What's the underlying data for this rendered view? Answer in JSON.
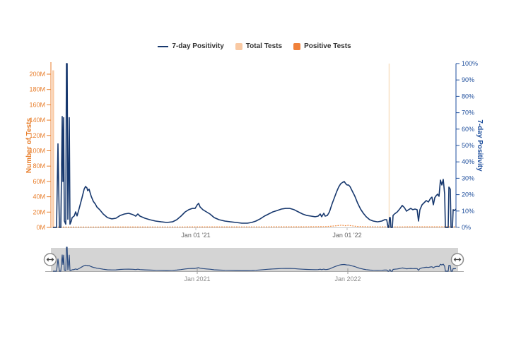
{
  "legend": {
    "items": [
      {
        "label": "7-day Positivity",
        "type": "line",
        "color": "#17386e"
      },
      {
        "label": "Total Tests",
        "type": "square",
        "color": "#f9c9a3"
      },
      {
        "label": "Positive Tests",
        "type": "square",
        "color": "#f0813a"
      }
    ]
  },
  "main_chart": {
    "left_axis": {
      "title": "Number of Tests",
      "color": "#e87e2b",
      "ticks": [
        "0M",
        "20M",
        "40M",
        "60M",
        "80M",
        "100M",
        "120M",
        "140M",
        "160M",
        "180M",
        "200M"
      ]
    },
    "right_axis": {
      "title": "7-day Positivity",
      "color": "#1e4e9c",
      "ticks": [
        "0%",
        "10%",
        "20%",
        "30%",
        "40%",
        "50%",
        "60%",
        "70%",
        "80%",
        "90%",
        "100%"
      ]
    },
    "x_axis": {
      "ticks": [
        {
          "label": "Jan 01 '21",
          "x": 277
        },
        {
          "label": "Jan 01 '22",
          "x": 491
        }
      ]
    }
  },
  "navigator": {
    "x_axis": {
      "ticks": [
        {
          "label": "Jan 2021",
          "x": 279
        },
        {
          "label": "Jan 2022",
          "x": 492
        }
      ]
    }
  },
  "chart_data": {
    "type": "line",
    "title": "",
    "xlabel": "",
    "left_ylabel": "Number of Tests",
    "left_ylim_millions": [
      0,
      200
    ],
    "right_ylabel": "7-day Positivity",
    "right_ylim_percent": [
      0,
      100
    ],
    "x_domain_note": "approx Feb 2020 through Sep 2022; x given in screenshot pixels, Jan-01-2021=277px, Jan-01-2022=491px",
    "grid": false,
    "legend_position": "top-center",
    "marker_line_x": 550,
    "total_tests_bar": {
      "x": 74,
      "width": 2.5,
      "approx_value_millions": 205
    },
    "series": [
      {
        "name": "7-day Positivity",
        "units": "percent",
        "points": [
          [
            75,
            0
          ],
          [
            80,
            0
          ],
          [
            82,
            51
          ],
          [
            84,
            0
          ],
          [
            86,
            0
          ],
          [
            88,
            67.7
          ],
          [
            89,
            28
          ],
          [
            90,
            67
          ],
          [
            91,
            4
          ],
          [
            93,
            2
          ],
          [
            94,
            100
          ],
          [
            95,
            100
          ],
          [
            96,
            5
          ],
          [
            97,
            30
          ],
          [
            98,
            67
          ],
          [
            99,
            2
          ],
          [
            101,
            4
          ],
          [
            102,
            6
          ],
          [
            105,
            7
          ],
          [
            107,
            9.5
          ],
          [
            109,
            7
          ],
          [
            112,
            11.6
          ],
          [
            116,
            18.1
          ],
          [
            119,
            23.3
          ],
          [
            121,
            25
          ],
          [
            123,
            24.1
          ],
          [
            124,
            22.4
          ],
          [
            126,
            23.3
          ],
          [
            129,
            19
          ],
          [
            132,
            15.9
          ],
          [
            135,
            14.2
          ],
          [
            137,
            12.5
          ],
          [
            141,
            10.8
          ],
          [
            146,
            8.2
          ],
          [
            152,
            6
          ],
          [
            158,
            5.2
          ],
          [
            164,
            5.6
          ],
          [
            170,
            7.3
          ],
          [
            176,
            8.2
          ],
          [
            182,
            8.6
          ],
          [
            188,
            7.8
          ],
          [
            192,
            6.9
          ],
          [
            195,
            8.2
          ],
          [
            198,
            6.9
          ],
          [
            205,
            5.6
          ],
          [
            212,
            4.7
          ],
          [
            220,
            3.9
          ],
          [
            228,
            3.4
          ],
          [
            236,
            3
          ],
          [
            244,
            3.4
          ],
          [
            250,
            4.7
          ],
          [
            256,
            6.9
          ],
          [
            262,
            9.5
          ],
          [
            267,
            10.8
          ],
          [
            272,
            11.6
          ],
          [
            276,
            11.6
          ],
          [
            279,
            13.8
          ],
          [
            281,
            14.7
          ],
          [
            283,
            12.5
          ],
          [
            287,
            10.8
          ],
          [
            292,
            9.5
          ],
          [
            297,
            8.2
          ],
          [
            303,
            6
          ],
          [
            310,
            4.7
          ],
          [
            318,
            3.9
          ],
          [
            326,
            3.4
          ],
          [
            334,
            3
          ],
          [
            342,
            2.6
          ],
          [
            350,
            2.6
          ],
          [
            356,
            3
          ],
          [
            362,
            3.9
          ],
          [
            368,
            5.2
          ],
          [
            374,
            6.9
          ],
          [
            380,
            8.2
          ],
          [
            386,
            9.5
          ],
          [
            392,
            10.3
          ],
          [
            398,
            11.2
          ],
          [
            404,
            11.6
          ],
          [
            410,
            11.6
          ],
          [
            416,
            10.8
          ],
          [
            422,
            9.5
          ],
          [
            428,
            8.2
          ],
          [
            434,
            7.3
          ],
          [
            440,
            6.9
          ],
          [
            446,
            6.5
          ],
          [
            450,
            6.9
          ],
          [
            453,
            8.2
          ],
          [
            455,
            6.5
          ],
          [
            458,
            8.6
          ],
          [
            460,
            6.9
          ],
          [
            463,
            7.3
          ],
          [
            466,
            9.5
          ],
          [
            468,
            12.1
          ],
          [
            470,
            14.7
          ],
          [
            473,
            18.1
          ],
          [
            476,
            21.6
          ],
          [
            479,
            24.6
          ],
          [
            482,
            26.7
          ],
          [
            485,
            27.6
          ],
          [
            487,
            28
          ],
          [
            489,
            26.7
          ],
          [
            491,
            25.9
          ],
          [
            493,
            25.9
          ],
          [
            495,
            25
          ],
          [
            498,
            22.4
          ],
          [
            502,
            19
          ],
          [
            506,
            14.7
          ],
          [
            510,
            11.2
          ],
          [
            514,
            8.6
          ],
          [
            518,
            6.5
          ],
          [
            523,
            4.7
          ],
          [
            528,
            3.9
          ],
          [
            534,
            3.4
          ],
          [
            540,
            3.9
          ],
          [
            544,
            4.7
          ],
          [
            547,
            4.7
          ],
          [
            549,
            0
          ],
          [
            550,
            0
          ],
          [
            551,
            6
          ],
          [
            552,
            6
          ],
          [
            553,
            0
          ],
          [
            555,
            0
          ],
          [
            556,
            7.3
          ],
          [
            558,
            8.2
          ],
          [
            562,
            9.5
          ],
          [
            566,
            11.6
          ],
          [
            569,
            13.4
          ],
          [
            572,
            12.1
          ],
          [
            575,
            9.9
          ],
          [
            578,
            10.8
          ],
          [
            581,
            11.6
          ],
          [
            584,
            10.8
          ],
          [
            587,
            11.2
          ],
          [
            590,
            10.8
          ],
          [
            592,
            3.9
          ],
          [
            594,
            10.8
          ],
          [
            597,
            13.8
          ],
          [
            600,
            15.1
          ],
          [
            603,
            16.4
          ],
          [
            606,
            15.5
          ],
          [
            609,
            17.7
          ],
          [
            611,
            18.5
          ],
          [
            613,
            13.8
          ],
          [
            615,
            18.1
          ],
          [
            617,
            19.4
          ],
          [
            619,
            20.3
          ],
          [
            621,
            19
          ],
          [
            623,
            28.9
          ],
          [
            625,
            25.9
          ],
          [
            627,
            29.3
          ],
          [
            629,
            20.3
          ],
          [
            630,
            0
          ],
          [
            634,
            0
          ],
          [
            635,
            24.6
          ],
          [
            637,
            23.3
          ],
          [
            638,
            0
          ],
          [
            640,
            0
          ],
          [
            641,
            10.8
          ],
          [
            643,
            10.3
          ],
          [
            645,
            11.2
          ]
        ]
      },
      {
        "name": "Positive Tests",
        "units": "bar height px (values tiny vs 200M axis)",
        "points": [
          [
            75,
            0.5
          ],
          [
            150,
            0.6
          ],
          [
            250,
            0.7
          ],
          [
            350,
            0.8
          ],
          [
            430,
            0.9
          ],
          [
            460,
            1.2
          ],
          [
            470,
            1.8
          ],
          [
            478,
            2.6
          ],
          [
            483,
            3.2
          ],
          [
            488,
            2.4
          ],
          [
            493,
            3
          ],
          [
            498,
            2.2
          ],
          [
            505,
            1.4
          ],
          [
            520,
            1
          ],
          [
            555,
            0.8
          ],
          [
            600,
            0.9
          ],
          [
            645,
            0.9
          ]
        ]
      }
    ]
  }
}
